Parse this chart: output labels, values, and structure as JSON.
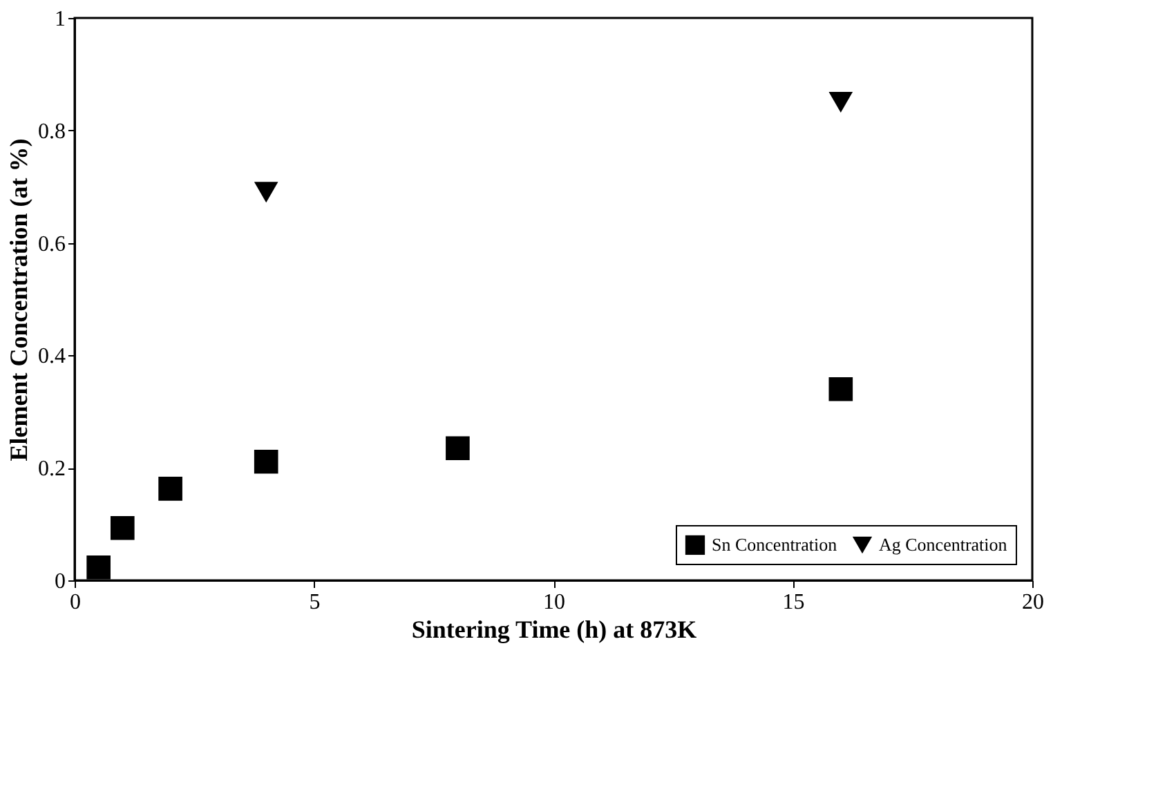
{
  "chart_data": {
    "type": "scatter",
    "xlabel": "Sintering Time (h) at 873K",
    "ylabel": "Element Concentration (at %)",
    "xlim": [
      0,
      20
    ],
    "xticks": [
      0,
      5,
      10,
      15,
      20
    ],
    "ylim": [
      0,
      1
    ],
    "yticks": [
      0,
      0.2,
      0.4,
      0.6,
      0.8,
      1
    ],
    "grid": false,
    "legend": "bottom right",
    "series": [
      {
        "name": "Sn Concentration",
        "color": "#000000",
        "marker": "square",
        "x": [
          0.5,
          1,
          2,
          4,
          8,
          16
        ],
        "values": [
          0.023,
          0.093,
          0.163,
          0.211,
          0.235,
          0.34
        ]
      },
      {
        "name": "Ag Concentration",
        "color": "#000000",
        "marker": "triangle",
        "x": [
          4,
          16
        ],
        "values": [
          0.69,
          0.85
        ]
      }
    ]
  }
}
